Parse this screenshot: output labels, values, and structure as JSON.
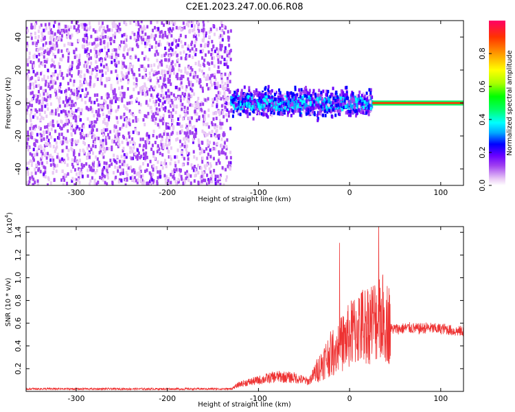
{
  "title": "C2E1.2023.247.00.06.R08",
  "chart_data": [
    {
      "type": "heatmap",
      "title": "",
      "xlabel": "Height of straight line (km)",
      "ylabel": "Frequency (Hz)",
      "xlim": [
        -355,
        125
      ],
      "ylim": [
        -50,
        50
      ],
      "xticks": [
        -300,
        -200,
        -100,
        0,
        100
      ],
      "yticks": [
        -40,
        -20,
        0,
        20,
        40
      ],
      "colorbar": {
        "label": "Normalized spectral amplitude",
        "range": [
          0.0,
          1.0
        ],
        "ticks": [
          "0.0",
          "0.2",
          "0.4",
          "0.6",
          "0.8"
        ],
        "colors": [
          "#ffffff",
          "#e9c9f5",
          "#a040f0",
          "#6a00ff",
          "#0000ff",
          "#00aaff",
          "#00ffff",
          "#00ff66",
          "#00ff00",
          "#aaff00",
          "#ffff00",
          "#ff9900",
          "#ff3300",
          "#ff0066"
        ]
      },
      "regions": [
        {
          "x": [
            -355,
            -130
          ],
          "freq_spread": 50,
          "amplitude": [
            0.05,
            0.2
          ]
        },
        {
          "x": [
            -130,
            25
          ],
          "freq_spread": 12,
          "amplitude": [
            0.1,
            0.35
          ]
        },
        {
          "x": [
            25,
            125
          ],
          "freq_spread": 2,
          "amplitude": [
            0.6,
            0.9
          ]
        }
      ]
    },
    {
      "type": "line",
      "title": "",
      "xlabel": "Height of straight line (km)",
      "ylabel": "SNR (10 * v/v)",
      "ylabel_scale": "(x10",
      "ylabel_exp": "4",
      "xlim": [
        -355,
        125
      ],
      "ylim": [
        0,
        1.45
      ],
      "xticks": [
        -300,
        -200,
        -100,
        0,
        100
      ],
      "yticks": [
        "0.2",
        "0.4",
        "0.6",
        "0.8",
        "1.0",
        "1.2",
        "1.4"
      ],
      "ytick_values": [
        0.2,
        0.4,
        0.6,
        0.8,
        1.0,
        1.2,
        1.4
      ],
      "series": [
        {
          "color": "#ee3333",
          "x": [
            -355,
            -300,
            -200,
            -130,
            -120,
            -100,
            -80,
            -60,
            -45,
            -35,
            -25,
            -15,
            -5,
            5,
            15,
            25,
            35,
            45,
            55,
            65,
            75,
            85,
            95,
            105,
            115,
            125
          ],
          "y": [
            0.02,
            0.02,
            0.02,
            0.02,
            0.06,
            0.09,
            0.12,
            0.11,
            0.08,
            0.18,
            0.28,
            0.35,
            0.42,
            0.5,
            0.55,
            0.58,
            0.62,
            0.55,
            0.55,
            0.56,
            0.55,
            0.56,
            0.55,
            0.55,
            0.53,
            0.53
          ]
        }
      ]
    }
  ]
}
